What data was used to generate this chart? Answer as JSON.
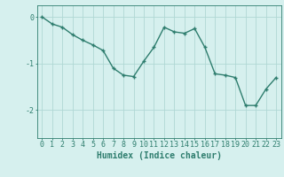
{
  "x": [
    0,
    1,
    2,
    3,
    4,
    5,
    6,
    7,
    8,
    9,
    10,
    11,
    12,
    13,
    14,
    15,
    16,
    17,
    18,
    19,
    20,
    21,
    22,
    23
  ],
  "y": [
    0.0,
    -0.15,
    -0.22,
    -0.38,
    -0.5,
    -0.6,
    -0.72,
    -1.1,
    -1.25,
    -1.28,
    -0.95,
    -0.65,
    -0.22,
    -0.32,
    -0.35,
    -0.25,
    -0.65,
    -1.22,
    -1.25,
    -1.3,
    -1.9,
    -1.9,
    -1.55,
    -1.3
  ],
  "line_color": "#2e7d6e",
  "marker": "+",
  "bg_color": "#d6f0ee",
  "grid_color": "#b0d8d4",
  "axis_color": "#2e7d6e",
  "xlabel": "Humidex (Indice chaleur)",
  "ylim": [
    -2.6,
    0.25
  ],
  "xlim": [
    -0.5,
    23.5
  ],
  "yticks": [
    0,
    -1,
    -2
  ],
  "xticks": [
    0,
    1,
    2,
    3,
    4,
    5,
    6,
    7,
    8,
    9,
    10,
    11,
    12,
    13,
    14,
    15,
    16,
    17,
    18,
    19,
    20,
    21,
    22,
    23
  ],
  "figsize": [
    3.2,
    2.0
  ],
  "dpi": 100,
  "fontsize_xlabel": 7,
  "fontsize_ticks": 6,
  "linewidth": 1.0
}
